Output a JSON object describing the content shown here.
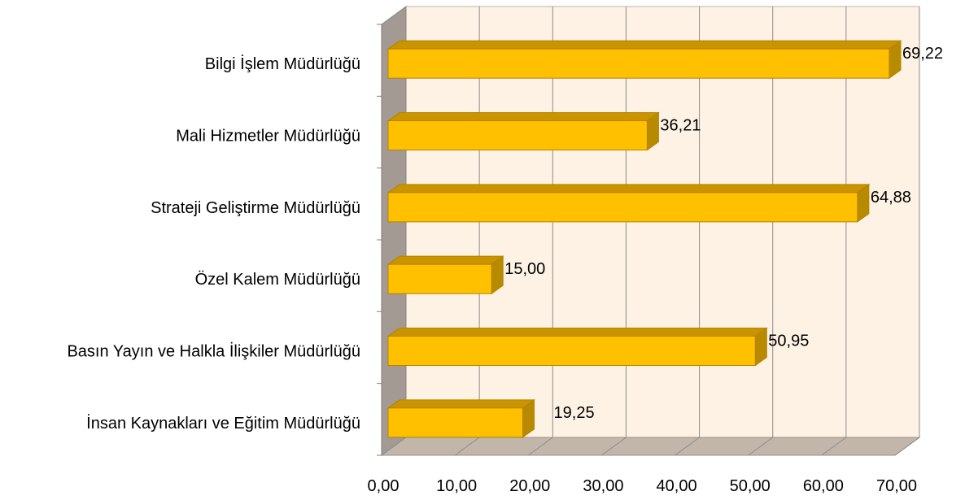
{
  "chart_data": {
    "type": "bar",
    "orientation": "horizontal",
    "style": "3d",
    "categories": [
      "Bilgi İşlem Müdürlüğü",
      "Mali Hizmetler Müdürlüğü",
      "Strateji Geliştirme Müdürlüğü",
      "Özel Kalem Müdürlüğü",
      "Basın Yayın ve Halkla İlişkiler Müdürlüğü",
      "İnsan Kaynakları ve Eğitim Müdürlüğü"
    ],
    "values": [
      69.22,
      36.21,
      64.88,
      15.0,
      50.95,
      19.25
    ],
    "value_labels": [
      "69,22",
      "36,21",
      "64,88",
      "15,00",
      "50,95",
      "19,25"
    ],
    "xlim": [
      0,
      70
    ],
    "x_ticks": [
      0,
      10,
      20,
      30,
      40,
      50,
      60,
      70
    ],
    "x_tick_labels": [
      "0,00",
      "10,00",
      "20,00",
      "30,00",
      "40,00",
      "50,00",
      "60,00",
      "70,00"
    ],
    "grid": true,
    "legend": "none",
    "colors": {
      "bar_front": "#FFC000",
      "bar_top": "#C99400",
      "bar_side": "#B88A00",
      "bar_border": "#B58300",
      "back_wall": "#FDF2E4",
      "side_wall": "#A39A93",
      "floor": "#C2B6AA",
      "grid": "#8C8C8C"
    }
  }
}
